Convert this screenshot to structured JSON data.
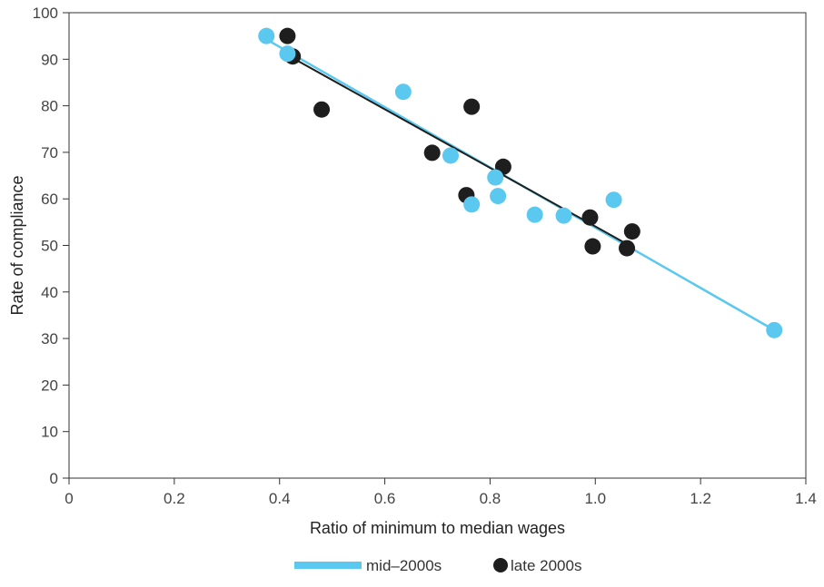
{
  "chart_data": {
    "type": "scatter",
    "title": "",
    "xlabel": "Ratio of minimum to median wages",
    "ylabel": "Rate of compliance",
    "xlim": [
      0,
      1.4
    ],
    "ylim": [
      0,
      100
    ],
    "x_ticks": [
      "0",
      "0.2",
      "0.4",
      "0.6",
      "0.8",
      "1.0",
      "1.2",
      "1.4"
    ],
    "x_tick_values": [
      0,
      0.2,
      0.4,
      0.6,
      0.8,
      1.0,
      1.2,
      1.4
    ],
    "y_ticks": [
      "0",
      "10",
      "20",
      "30",
      "40",
      "50",
      "60",
      "70",
      "80",
      "90",
      "100"
    ],
    "y_tick_values": [
      0,
      10,
      20,
      30,
      40,
      50,
      60,
      70,
      80,
      90,
      100
    ],
    "grid": false,
    "legend_position": "bottom-center",
    "series": [
      {
        "name": "mid–2000s",
        "color": "#5bc8f0",
        "legend_marker": "line",
        "points": [
          [
            0.375,
            95.0
          ],
          [
            0.415,
            91.2
          ],
          [
            0.635,
            83.0
          ],
          [
            0.725,
            69.3
          ],
          [
            0.765,
            58.8
          ],
          [
            0.81,
            64.6
          ],
          [
            0.815,
            60.6
          ],
          [
            0.885,
            56.6
          ],
          [
            0.94,
            56.4
          ],
          [
            1.035,
            59.8
          ],
          [
            1.34,
            31.8
          ]
        ],
        "trend": [
          [
            0.37,
            94.6
          ],
          [
            1.34,
            31.8
          ]
        ]
      },
      {
        "name": "late 2000s",
        "color": "#1e1e1e",
        "legend_marker": "dot",
        "points": [
          [
            0.415,
            95.0
          ],
          [
            0.425,
            90.6
          ],
          [
            0.48,
            79.2
          ],
          [
            0.69,
            69.9
          ],
          [
            0.755,
            60.8
          ],
          [
            0.765,
            79.8
          ],
          [
            0.825,
            66.9
          ],
          [
            0.99,
            56.0
          ],
          [
            0.995,
            49.8
          ],
          [
            1.06,
            49.4
          ],
          [
            1.07,
            53.0
          ]
        ],
        "trend": [
          [
            0.41,
            91.2
          ],
          [
            1.06,
            50.3
          ]
        ]
      }
    ]
  }
}
